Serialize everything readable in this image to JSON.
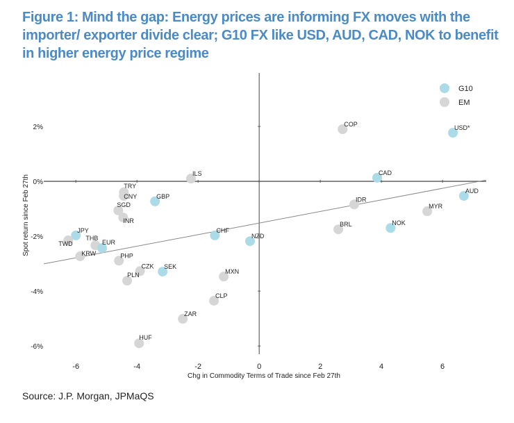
{
  "title": "Figure 1: Mind the gap: Energy prices are informing FX moves with the importer/ exporter divide clear; G10 FX like USD, AUD, CAD, NOK to benefit in higher energy price regime",
  "source": "Source: J.P. Morgan, JPMaQS",
  "chart_data": {
    "type": "scatter",
    "xlabel": "Chg in Commodity Terms of Trade since Feb 27th",
    "ylabel": "Spot return since Feb 27th",
    "xlim": [
      -7.05,
      7.43
    ],
    "ylim": [
      -6.3,
      3.95
    ],
    "xticks": [
      -6,
      -4,
      -2,
      0,
      2,
      4,
      6
    ],
    "xtick_labels": [
      "-6",
      "-4",
      "-2",
      "0",
      "2",
      "4",
      "6"
    ],
    "yticks": [
      2,
      0,
      -2,
      -4,
      -6
    ],
    "ytick_labels": [
      "2%",
      "0%",
      "-2%",
      "-4%",
      "-6%"
    ],
    "grid": false,
    "legend": {
      "placement": "top-right",
      "entries": [
        {
          "name": "G10",
          "color": "#acdbe8"
        },
        {
          "name": "EM",
          "color": "#d6d6d6"
        }
      ]
    },
    "trendline": {
      "slope": 0.211,
      "intercept": -1.52
    },
    "points": [
      {
        "label": "COP",
        "group": "EM",
        "x": 2.73,
        "y": 1.9
      },
      {
        "label": "USD*",
        "group": "G10",
        "x": 6.34,
        "y": 1.77
      },
      {
        "label": "CAD",
        "group": "G10",
        "x": 3.86,
        "y": 0.13
      },
      {
        "label": "AUD",
        "group": "G10",
        "x": 6.7,
        "y": -0.53
      },
      {
        "label": "IDR",
        "group": "EM",
        "x": 3.11,
        "y": -0.84
      },
      {
        "label": "MYR",
        "group": "EM",
        "x": 5.5,
        "y": -1.09
      },
      {
        "label": "BRL",
        "group": "EM",
        "x": 2.59,
        "y": -1.75
      },
      {
        "label": "NOK",
        "group": "G10",
        "x": 4.3,
        "y": -1.7
      },
      {
        "label": "ILS",
        "group": "EM",
        "x": -2.23,
        "y": 0.1
      },
      {
        "label": "TRY",
        "group": "EM",
        "x": -4.43,
        "y": -0.4
      },
      {
        "label": "CNY",
        "group": "EM",
        "x": -4.43,
        "y": -0.53
      },
      {
        "label": "SGD",
        "group": "EM",
        "x": -4.61,
        "y": -1.06
      },
      {
        "label": "INR",
        "group": "EM",
        "x": -4.45,
        "y": -1.32
      },
      {
        "label": "GBP",
        "group": "G10",
        "x": -3.41,
        "y": -0.73
      },
      {
        "label": "JPY",
        "group": "G10",
        "x": -6.0,
        "y": -1.97
      },
      {
        "label": "TWD",
        "group": "EM",
        "x": -6.25,
        "y": -2.15
      },
      {
        "label": "THB",
        "group": "EM",
        "x": -5.36,
        "y": -2.33
      },
      {
        "label": "EUR",
        "group": "G10",
        "x": -5.14,
        "y": -2.43
      },
      {
        "label": "KRW",
        "group": "EM",
        "x": -5.86,
        "y": -2.73
      },
      {
        "label": "PHP",
        "group": "EM",
        "x": -4.59,
        "y": -2.89
      },
      {
        "label": "CZK",
        "group": "EM",
        "x": -3.9,
        "y": -3.27
      },
      {
        "label": "SEK",
        "group": "G10",
        "x": -3.16,
        "y": -3.29
      },
      {
        "label": "PLN",
        "group": "EM",
        "x": -4.32,
        "y": -3.62
      },
      {
        "label": "MXN",
        "group": "EM",
        "x": -1.16,
        "y": -3.47
      },
      {
        "label": "CLP",
        "group": "EM",
        "x": -1.48,
        "y": -4.35
      },
      {
        "label": "ZAR",
        "group": "EM",
        "x": -2.5,
        "y": -5.01
      },
      {
        "label": "HUF",
        "group": "EM",
        "x": -3.93,
        "y": -5.9
      },
      {
        "label": "CHF",
        "group": "G10",
        "x": -1.45,
        "y": -1.97
      },
      {
        "label": "NZD",
        "group": "G10",
        "x": -0.3,
        "y": -2.18
      }
    ]
  }
}
